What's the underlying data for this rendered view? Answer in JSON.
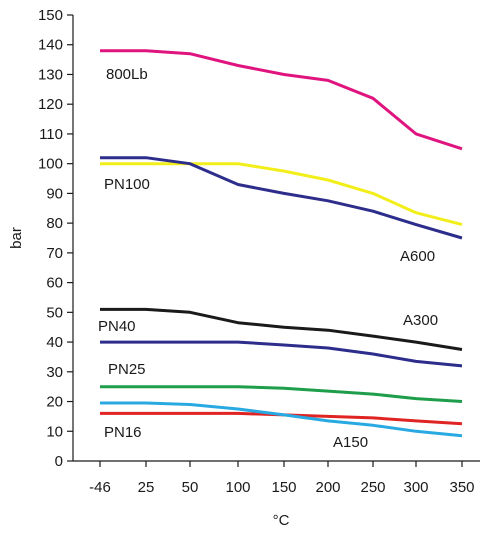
{
  "chart_data": {
    "type": "line",
    "xlabel": "°C",
    "ylabel": "bar",
    "categories": [
      "-46",
      "25",
      "50",
      "100",
      "150",
      "200",
      "250",
      "300",
      "350"
    ],
    "ylim": [
      0,
      150
    ],
    "yticks": [
      0,
      10,
      20,
      30,
      40,
      50,
      60,
      70,
      80,
      90,
      100,
      110,
      120,
      130,
      140,
      150
    ],
    "grid": false,
    "legend": "none",
    "series": [
      {
        "name": "800Lb",
        "color": "#e0147f",
        "x": [
          -46,
          25,
          50,
          100,
          150,
          200,
          250,
          300,
          350
        ],
        "values": [
          138,
          138,
          137,
          133,
          130,
          128,
          122,
          110,
          105
        ]
      },
      {
        "name": "PN100",
        "color": "#f2ee1a",
        "x": [
          -46,
          25,
          50,
          100,
          150,
          200,
          250,
          300,
          350
        ],
        "values": [
          100,
          100,
          100,
          100,
          97.5,
          94.5,
          90,
          83.5,
          79.5
        ]
      },
      {
        "name": "A600",
        "color": "#2d2d8c",
        "x": [
          -46,
          25,
          50,
          100,
          150,
          200,
          250,
          300,
          350
        ],
        "values": [
          102,
          102,
          100,
          93,
          90,
          87.5,
          84,
          79.5,
          75
        ]
      },
      {
        "name": "PN40",
        "color": "#1a1a1a",
        "x": [
          -46,
          25,
          50,
          100,
          150,
          200,
          250,
          300,
          350
        ],
        "values": [
          51,
          51,
          50,
          46.5,
          45,
          44,
          42,
          40,
          37.5
        ]
      },
      {
        "name": "A300",
        "color": "#2d2d8c",
        "x": [
          -46,
          25,
          50,
          100,
          150,
          200,
          250,
          300,
          350
        ],
        "values": [
          40,
          40,
          40,
          40,
          39,
          38,
          36,
          33.5,
          32
        ]
      },
      {
        "name": "PN25",
        "color": "#1e9e4a",
        "x": [
          -46,
          25,
          50,
          100,
          150,
          200,
          250,
          300,
          350
        ],
        "values": [
          25,
          25,
          25,
          25,
          24.5,
          23.5,
          22.5,
          21,
          20
        ]
      },
      {
        "name": "PN16",
        "color": "#e02424",
        "x": [
          -46,
          25,
          50,
          100,
          150,
          200,
          250,
          300,
          350
        ],
        "values": [
          16,
          16,
          16,
          16,
          15.5,
          15,
          14.5,
          13.5,
          12.5
        ]
      },
      {
        "name": "A150",
        "color": "#29a9e1",
        "x": [
          -46,
          25,
          50,
          100,
          150,
          200,
          250,
          300,
          350
        ],
        "values": [
          19.5,
          19.5,
          19,
          17.5,
          15.5,
          13.5,
          12,
          10,
          8.5
        ]
      }
    ]
  }
}
